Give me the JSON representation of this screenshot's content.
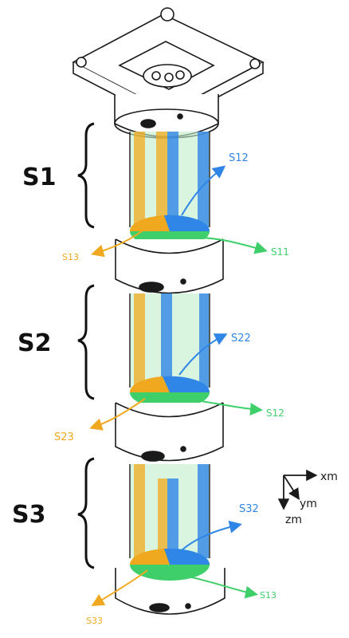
{
  "colors": {
    "orange": "#f0a81e",
    "green": "#3ecf6a",
    "blue": "#2f86e6",
    "ink": "#1a1a1a"
  },
  "sections": [
    {
      "label": "S1"
    },
    {
      "label": "S2"
    },
    {
      "label": "S3"
    }
  ],
  "callouts": {
    "s12_top": "S12",
    "s13_top": "S13",
    "s11": "S11",
    "s22": "S22",
    "s23": "S23",
    "s12_mid": "S12",
    "s32": "S32",
    "s33": "S33",
    "s13_bottom": "S13"
  },
  "axes": {
    "x": "xm",
    "y": "ym",
    "z": "zm"
  }
}
